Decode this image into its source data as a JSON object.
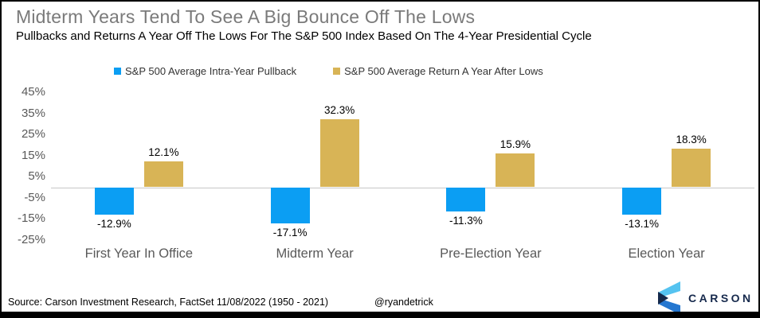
{
  "title": "Midterm Years Tend To See A Big Bounce Off The Lows",
  "subtitle": "Pullbacks and Returns A Year Off The Lows For The S&P 500 Index Based On The 4-Year Presidential Cycle",
  "chart_data": {
    "type": "bar",
    "title": "Midterm Years Tend To See A Big Bounce Off The Lows",
    "subtitle": "Pullbacks and Returns A Year Off The Lows For The S&P 500 Index Based On The 4-Year Presidential Cycle",
    "categories": [
      "First Year In Office",
      "Midterm Year",
      "Pre-Election Year",
      "Election Year"
    ],
    "series": [
      {
        "name": "S&P 500 Average Intra-Year Pullback",
        "color": "#0b9ef3",
        "values": [
          -12.9,
          -17.1,
          -11.3,
          -13.1
        ],
        "labels": [
          "-12.9%",
          "-17.1%",
          "-11.3%",
          "-13.1%"
        ]
      },
      {
        "name": "S&P 500 Average Return A Year After Lows",
        "color": "#d8b456",
        "values": [
          12.1,
          32.3,
          15.9,
          18.3
        ],
        "labels": [
          "12.1%",
          "32.3%",
          "15.9%",
          "18.3%"
        ]
      }
    ],
    "y_axis": {
      "tick_values": [
        45,
        35,
        25,
        15,
        5,
        -5,
        -15,
        -25
      ],
      "tick_labels": [
        "45%",
        "35%",
        "25%",
        "15%",
        "5%",
        "-5%",
        "-15%",
        "-25%"
      ],
      "range": [
        -25,
        45
      ],
      "gridlines": false,
      "zero_line_color": "#c6c6c6"
    },
    "legend_position": "top",
    "data_label_color": "#000000"
  },
  "footer": {
    "source": "Source: Carson Investment Research, FactSet 11/08/2022 (1950 - 2021)",
    "handle": "@ryandetrick",
    "logo_text": "CARSON"
  },
  "colors": {
    "title": "#7a7a7a",
    "axis_text": "#595959",
    "pullback_blue": "#0b9ef3",
    "return_gold": "#d8b456",
    "logo_navy": "#16294c",
    "logo_sky": "#55c3f0",
    "logo_blue": "#2577d0"
  }
}
